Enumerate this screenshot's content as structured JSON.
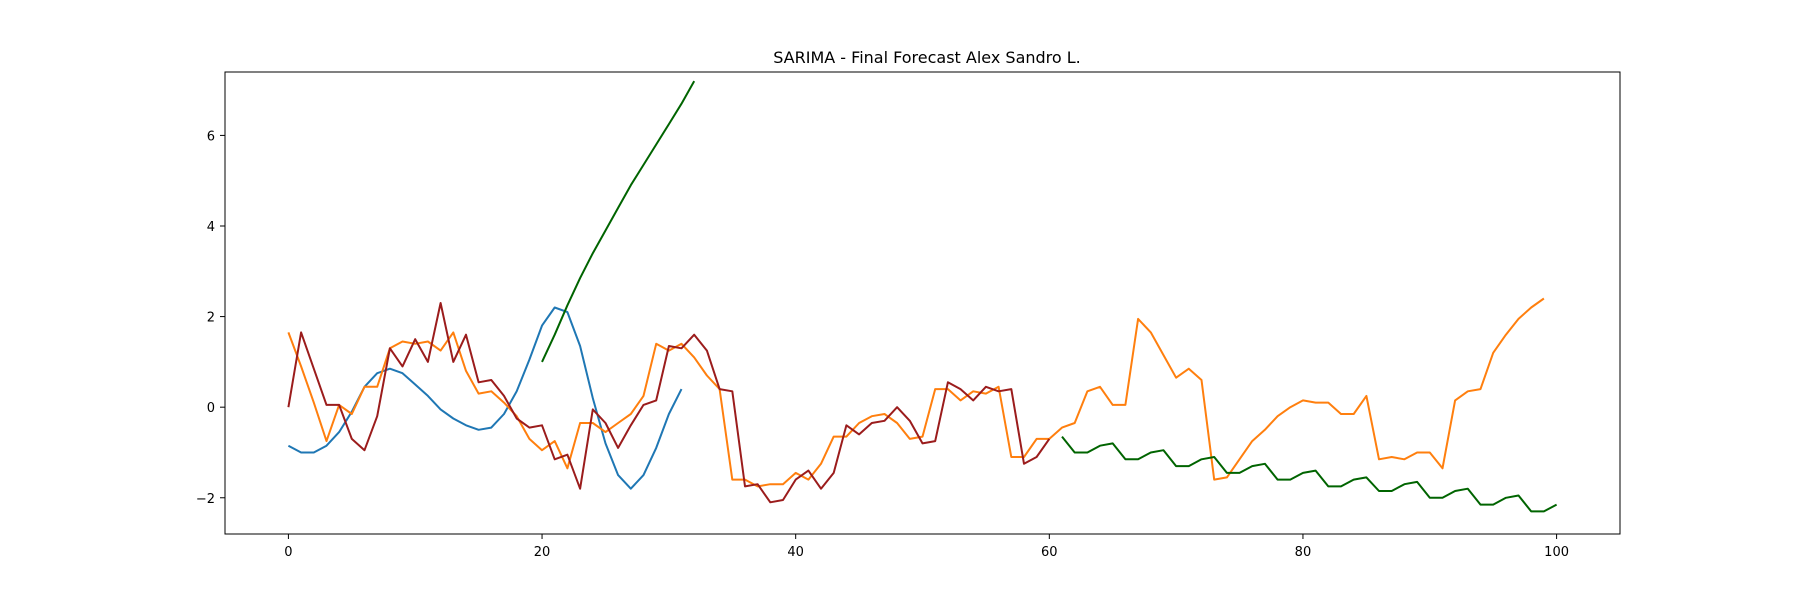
{
  "chart_data": {
    "type": "line",
    "title": "SARIMA - Final Forecast Alex Sandro L.",
    "xlabel": "",
    "ylabel": "",
    "xlim": [
      -5,
      105
    ],
    "ylim": [
      -2.8,
      7.4
    ],
    "xticks": [
      0,
      20,
      40,
      60,
      80,
      100
    ],
    "yticks": [
      -2,
      0,
      2,
      4,
      6
    ],
    "grid": false,
    "legend": "none",
    "series": [
      {
        "color": "#1f77b4",
        "x": [
          0,
          1,
          2,
          3,
          4,
          5,
          6,
          7,
          8,
          9,
          10,
          11,
          12,
          13,
          14,
          15,
          16,
          17,
          18,
          19,
          20,
          21,
          22,
          23,
          24,
          25,
          26,
          27,
          28,
          29,
          30,
          31
        ],
        "y": [
          -0.85,
          -1.0,
          -1.0,
          -0.85,
          -0.55,
          -0.1,
          0.45,
          0.75,
          0.85,
          0.75,
          0.5,
          0.25,
          -0.05,
          -0.25,
          -0.4,
          -0.5,
          -0.45,
          -0.15,
          0.35,
          1.05,
          1.8,
          2.2,
          2.1,
          1.35,
          0.2,
          -0.8,
          -1.5,
          -1.8,
          -1.5,
          -0.9,
          -0.15,
          0.4
        ]
      },
      {
        "color": "#ff7f0e",
        "x": [
          0,
          1,
          2,
          3,
          4,
          5,
          6,
          7,
          8,
          9,
          10,
          11,
          12,
          13,
          14,
          15,
          16,
          17,
          18,
          19,
          20,
          21,
          22,
          23,
          24,
          25,
          26,
          27,
          28,
          29,
          30,
          31,
          32,
          33,
          34,
          35,
          36,
          37,
          38,
          39,
          40,
          41,
          42,
          43,
          44,
          45,
          46,
          47,
          48,
          49,
          50,
          51,
          52,
          53,
          54,
          55,
          56,
          57,
          58,
          59,
          60,
          61,
          62,
          63,
          64,
          65,
          66,
          67,
          68,
          69,
          70,
          71,
          72,
          73,
          74,
          75,
          76,
          77,
          78,
          79,
          80,
          81,
          82,
          83,
          84,
          85,
          86,
          87,
          88,
          89,
          90,
          91,
          92,
          93,
          94,
          95,
          96,
          97,
          98,
          99
        ],
        "y": [
          1.65,
          0.9,
          0.1,
          -0.75,
          0.05,
          -0.15,
          0.45,
          0.45,
          1.3,
          1.45,
          1.4,
          1.45,
          1.25,
          1.65,
          0.8,
          0.3,
          0.35,
          0.1,
          -0.2,
          -0.7,
          -0.95,
          -0.75,
          -1.35,
          -0.35,
          -0.35,
          -0.55,
          -0.35,
          -0.15,
          0.25,
          1.4,
          1.25,
          1.4,
          1.1,
          0.7,
          0.4,
          -1.6,
          -1.6,
          -1.75,
          -1.7,
          -1.7,
          -1.45,
          -1.6,
          -1.25,
          -0.65,
          -0.65,
          -0.35,
          -0.2,
          -0.15,
          -0.35,
          -0.7,
          -0.65,
          0.4,
          0.4,
          0.15,
          0.35,
          0.3,
          0.45,
          -1.1,
          -1.1,
          -0.7,
          -0.7,
          -0.45,
          -0.35,
          0.35,
          0.45,
          0.05,
          0.05,
          1.95,
          1.65,
          1.15,
          0.65,
          0.85,
          0.6,
          -1.6,
          -1.55,
          -1.15,
          -0.75,
          -0.5,
          -0.2,
          0.0,
          0.15,
          0.1,
          0.1,
          -0.15,
          -0.15,
          0.25,
          -1.15,
          -1.1,
          -1.15,
          -1.0,
          -1.0,
          -1.35,
          0.15,
          0.35,
          0.4,
          1.2,
          1.6,
          1.95,
          2.2,
          2.4
        ]
      },
      {
        "color": "#9b1c1c",
        "x": [
          0,
          1,
          2,
          3,
          4,
          5,
          6,
          7,
          8,
          9,
          10,
          11,
          12,
          13,
          14,
          15,
          16,
          17,
          18,
          19,
          20,
          21,
          22,
          23,
          24,
          25,
          26,
          27,
          28,
          29,
          30,
          31,
          32,
          33,
          34,
          35,
          36,
          37,
          38,
          39,
          40,
          41,
          42,
          43,
          44,
          45,
          46,
          47,
          48,
          49,
          50,
          51,
          52,
          53,
          54,
          55,
          56,
          57,
          58,
          59,
          60
        ],
        "y": [
          0.0,
          1.65,
          0.85,
          0.05,
          0.05,
          -0.7,
          -0.95,
          -0.2,
          1.3,
          0.9,
          1.5,
          1.0,
          2.3,
          1.0,
          1.6,
          0.55,
          0.6,
          0.25,
          -0.25,
          -0.45,
          -0.4,
          -1.15,
          -1.05,
          -1.8,
          -0.05,
          -0.35,
          -0.9,
          -0.4,
          0.05,
          0.15,
          1.35,
          1.3,
          1.6,
          1.25,
          0.4,
          0.35,
          -1.75,
          -1.7,
          -2.1,
          -2.05,
          -1.6,
          -1.4,
          -1.8,
          -1.45,
          -0.4,
          -0.6,
          -0.35,
          -0.3,
          0.0,
          -0.3,
          -0.8,
          -0.75,
          0.55,
          0.4,
          0.15,
          0.45,
          0.35,
          0.4,
          -1.25,
          -1.1,
          -0.7
        ]
      },
      {
        "color": "#006400",
        "x": [
          20,
          21,
          22,
          23,
          24,
          25,
          26,
          27,
          28,
          29,
          30,
          31,
          32
        ],
        "y": [
          1.0,
          1.6,
          2.25,
          2.85,
          3.4,
          3.9,
          4.4,
          4.9,
          5.35,
          5.8,
          6.25,
          6.7,
          7.2
        ]
      },
      {
        "color": "#006400",
        "x": [
          61,
          62,
          63,
          64,
          65,
          66,
          67,
          68,
          69,
          70,
          71,
          72,
          73,
          74,
          75,
          76,
          77,
          78,
          79,
          80,
          81,
          82,
          83,
          84,
          85,
          86,
          87,
          88,
          89,
          90,
          91,
          92,
          93,
          94,
          95,
          96,
          97,
          98,
          99,
          100
        ],
        "y": [
          -0.65,
          -1.0,
          -1.0,
          -0.85,
          -0.8,
          -1.15,
          -1.15,
          -1.0,
          -0.95,
          -1.3,
          -1.3,
          -1.15,
          -1.1,
          -1.45,
          -1.45,
          -1.3,
          -1.25,
          -1.6,
          -1.6,
          -1.45,
          -1.4,
          -1.75,
          -1.75,
          -1.6,
          -1.55,
          -1.85,
          -1.85,
          -1.7,
          -1.65,
          -2.0,
          -2.0,
          -1.85,
          -1.8,
          -2.15,
          -2.15,
          -2.0,
          -1.95,
          -2.3,
          -2.3,
          -2.15
        ]
      }
    ]
  }
}
